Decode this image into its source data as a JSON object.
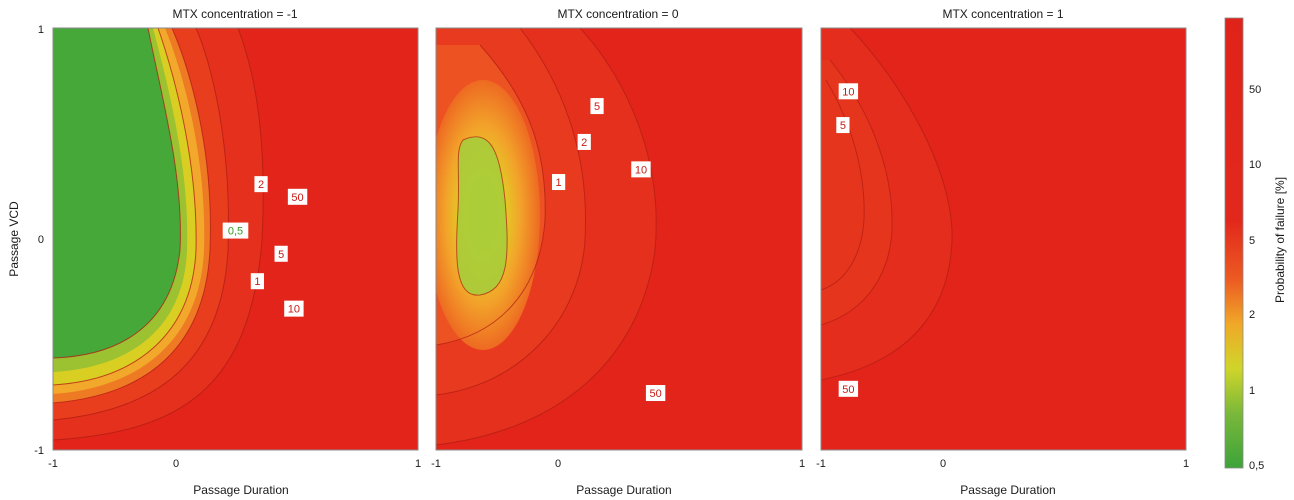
{
  "chart_data": {
    "type": "heatmap",
    "panels": [
      {
        "title": "MTX concentration = -1",
        "xlabel": "Passage Duration",
        "ylabel": "Passage VCD",
        "x_ticks": [
          "-1",
          "0",
          "1"
        ],
        "y_ticks": [
          "1",
          "0",
          "-1"
        ],
        "xlim": [
          -1,
          1
        ],
        "ylim": [
          -1,
          1
        ],
        "contours": [
          {
            "level": "0,5",
            "x": 0.0,
            "y": 0.04
          },
          {
            "level": "1",
            "x": 0.12,
            "y": -0.2
          },
          {
            "level": "2",
            "x": 0.14,
            "y": 0.26
          },
          {
            "level": "5",
            "x": 0.25,
            "y": -0.07
          },
          {
            "level": "10",
            "x": 0.32,
            "y": -0.33
          },
          {
            "level": "50",
            "x": 0.34,
            "y": 0.2
          }
        ]
      },
      {
        "title": "MTX concentration = 0",
        "xlabel": "Passage Duration",
        "ylabel": "",
        "x_ticks": [
          "-1",
          "0",
          "1"
        ],
        "y_ticks": [],
        "xlim": [
          -1,
          1
        ],
        "ylim": [
          -1,
          1
        ],
        "contours": [
          {
            "level": "1",
            "x": -0.33,
            "y": 0.27
          },
          {
            "level": "2",
            "x": -0.19,
            "y": 0.46
          },
          {
            "level": "5",
            "x": -0.12,
            "y": 0.63
          },
          {
            "level": "10",
            "x": 0.12,
            "y": 0.33
          },
          {
            "level": "50",
            "x": 0.2,
            "y": -0.73
          }
        ]
      },
      {
        "title": "MTX concentration = 1",
        "xlabel": "Passage Duration",
        "ylabel": "",
        "x_ticks": [
          "-1",
          "0",
          "1"
        ],
        "y_ticks": [],
        "xlim": [
          -1,
          1
        ],
        "ylim": [
          -1,
          1
        ],
        "contours": [
          {
            "level": "10",
            "x": -0.85,
            "y": 0.7
          },
          {
            "level": "5",
            "x": -0.88,
            "y": 0.54
          },
          {
            "level": "50",
            "x": -0.85,
            "y": -0.71
          }
        ]
      }
    ],
    "colorbar": {
      "label": "Probability of failure [%]",
      "ticks": [
        "50",
        "10",
        "5",
        "2",
        "1",
        "0,5"
      ],
      "scale": "log",
      "range": [
        0.5,
        100
      ]
    },
    "colors": {
      "low": "#47a83a",
      "mid": "#d8cf20",
      "orange": "#ee8a22",
      "high": "#e2241b",
      "contour_line": "#b01c14",
      "frame": "#8a8a8a"
    }
  }
}
